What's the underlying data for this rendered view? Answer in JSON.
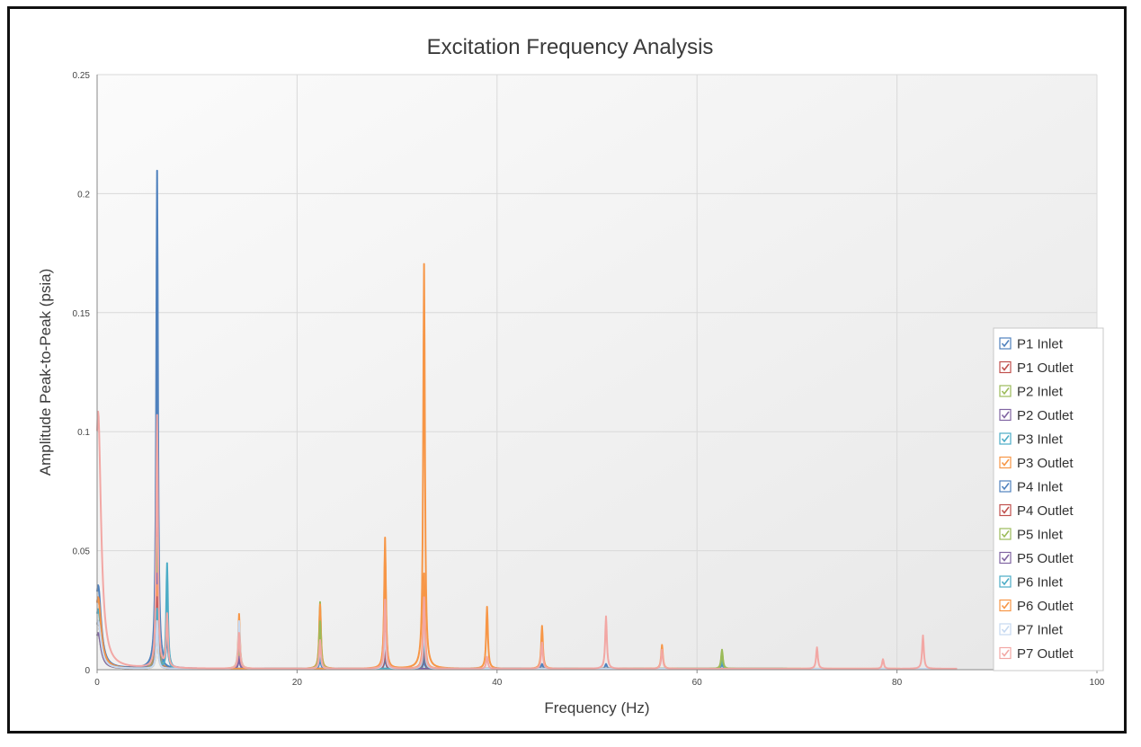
{
  "chart_data": {
    "type": "line",
    "title": "Excitation Frequency Analysis",
    "xlabel": "Frequency (Hz)",
    "ylabel": "Amplitude Peak-to-Peak (psia)",
    "xlim": [
      0,
      100
    ],
    "ylim": [
      0,
      0.25
    ],
    "x_ticks": [
      "0",
      "20",
      "40",
      "60",
      "80",
      "100"
    ],
    "y_ticks": [
      "0",
      "0.05",
      "0.1",
      "0.15",
      "0.2",
      "0.25"
    ],
    "grid": true,
    "legend_position": "right",
    "x_max_data": 86,
    "series": [
      {
        "name": "P1 Inlet",
        "color": "#4f81bd",
        "checked": true,
        "peaks": [
          [
            0.1,
            0.035
          ],
          [
            6.0,
            0.209
          ],
          [
            7.0,
            0.012
          ],
          [
            14.2,
            0.005
          ],
          [
            22.3,
            0.004
          ],
          [
            28.8,
            0.004
          ],
          [
            32.7,
            0.003
          ],
          [
            44.5,
            0.002
          ],
          [
            50.9,
            0.002
          ],
          [
            62.5,
            0.002
          ]
        ]
      },
      {
        "name": "P1 Outlet",
        "color": "#c0504d",
        "checked": true,
        "peaks": [
          [
            0.1,
            0.03
          ],
          [
            6.0,
            0.06
          ],
          [
            14.2,
            0.006
          ],
          [
            28.8,
            0.012
          ],
          [
            32.7,
            0.015
          ]
        ]
      },
      {
        "name": "P2 Inlet",
        "color": "#9bbb59",
        "checked": true,
        "peaks": [
          [
            0.1,
            0.02
          ],
          [
            6.0,
            0.055
          ],
          [
            14.2,
            0.008
          ],
          [
            22.3,
            0.028
          ],
          [
            28.8,
            0.01
          ],
          [
            32.7,
            0.012
          ],
          [
            62.5,
            0.008
          ]
        ]
      },
      {
        "name": "P2 Outlet",
        "color": "#8064a2",
        "checked": true,
        "peaks": [
          [
            0.1,
            0.02
          ],
          [
            6.0,
            0.04
          ],
          [
            14.2,
            0.005
          ],
          [
            22.3,
            0.01
          ],
          [
            32.7,
            0.008
          ]
        ]
      },
      {
        "name": "P3 Inlet",
        "color": "#4bacc6",
        "checked": true,
        "peaks": [
          [
            0.1,
            0.025
          ],
          [
            6.0,
            0.03
          ],
          [
            7.0,
            0.044
          ],
          [
            14.2,
            0.015
          ],
          [
            22.3,
            0.013
          ],
          [
            28.8,
            0.02
          ],
          [
            32.7,
            0.024
          ],
          [
            62.5,
            0.004
          ]
        ]
      },
      {
        "name": "P3 Outlet",
        "color": "#f79646",
        "checked": true,
        "peaks": [
          [
            0.1,
            0.03
          ],
          [
            6.0,
            0.035
          ],
          [
            14.2,
            0.023
          ],
          [
            22.3,
            0.027
          ],
          [
            28.8,
            0.055
          ],
          [
            32.7,
            0.17
          ],
          [
            39.0,
            0.026
          ],
          [
            44.5,
            0.018
          ],
          [
            56.5,
            0.01
          ]
        ]
      },
      {
        "name": "P4 Inlet",
        "color": "#4f81bd",
        "checked": true,
        "peaks": [
          [
            0.1,
            0.02
          ],
          [
            6.0,
            0.135
          ],
          [
            22.3,
            0.005
          ],
          [
            32.7,
            0.004
          ]
        ]
      },
      {
        "name": "P4 Outlet",
        "color": "#c0504d",
        "checked": true,
        "peaks": [
          [
            0.1,
            0.02
          ],
          [
            6.0,
            0.03
          ],
          [
            28.8,
            0.008
          ],
          [
            32.7,
            0.01
          ]
        ]
      },
      {
        "name": "P5 Inlet",
        "color": "#9bbb59",
        "checked": true,
        "peaks": [
          [
            0.1,
            0.015
          ],
          [
            6.0,
            0.02
          ],
          [
            22.3,
            0.02
          ],
          [
            62.5,
            0.007
          ]
        ]
      },
      {
        "name": "P5 Outlet",
        "color": "#8064a2",
        "checked": true,
        "peaks": [
          [
            0.1,
            0.015
          ],
          [
            6.0,
            0.025
          ],
          [
            14.2,
            0.004
          ]
        ]
      },
      {
        "name": "P6 Inlet",
        "color": "#4bacc6",
        "checked": true,
        "peaks": [
          [
            0.1,
            0.02
          ],
          [
            6.0,
            0.025
          ],
          [
            7.0,
            0.02
          ],
          [
            22.3,
            0.008
          ],
          [
            32.7,
            0.015
          ]
        ]
      },
      {
        "name": "P6 Outlet",
        "color": "#f79646",
        "checked": true,
        "peaks": [
          [
            0.1,
            0.02
          ],
          [
            6.0,
            0.02
          ],
          [
            28.8,
            0.05
          ],
          [
            32.7,
            0.04
          ]
        ]
      },
      {
        "name": "P7 Inlet",
        "color": "#c6d9f1",
        "checked": true,
        "peaks": [
          [
            0.1,
            0.02
          ],
          [
            6.0,
            0.02
          ],
          [
            14.2,
            0.02
          ],
          [
            22.3,
            0.01
          ],
          [
            28.8,
            0.015
          ],
          [
            32.7,
            0.02
          ]
        ]
      },
      {
        "name": "P7 Outlet",
        "color": "#f2a7a4",
        "checked": true,
        "peaks": [
          [
            0.1,
            0.108
          ],
          [
            6.0,
            0.106
          ],
          [
            7.0,
            0.022
          ],
          [
            14.2,
            0.015
          ],
          [
            22.3,
            0.012
          ],
          [
            28.8,
            0.029
          ],
          [
            32.7,
            0.03
          ],
          [
            39.0,
            0.005
          ],
          [
            44.5,
            0.011
          ],
          [
            50.9,
            0.022
          ],
          [
            56.5,
            0.008
          ],
          [
            72.0,
            0.009
          ],
          [
            78.6,
            0.004
          ],
          [
            82.6,
            0.014
          ]
        ]
      }
    ]
  }
}
